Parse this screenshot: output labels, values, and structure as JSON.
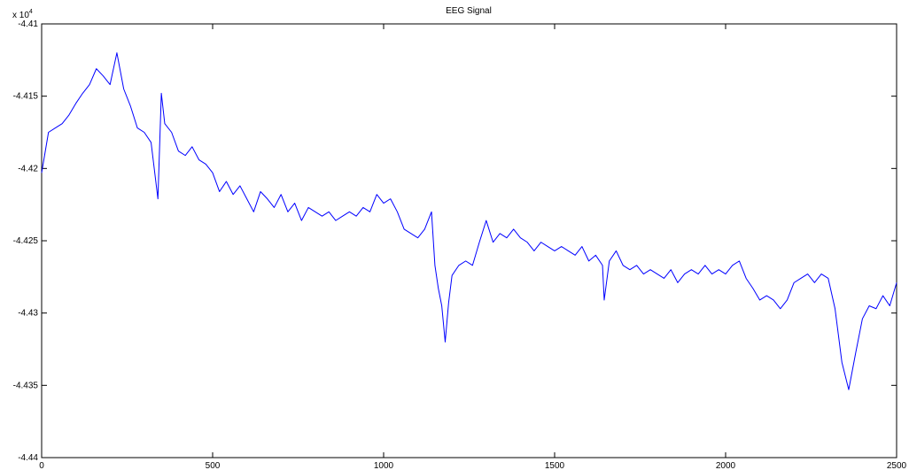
{
  "chart_data": {
    "type": "line",
    "title": "EEG Signal",
    "y_scale_label": {
      "base": "x 10",
      "exponent": "4"
    },
    "x": [
      0,
      20,
      40,
      60,
      80,
      100,
      120,
      140,
      160,
      180,
      200,
      220,
      240,
      260,
      280,
      300,
      320,
      340,
      350,
      360,
      380,
      400,
      420,
      440,
      460,
      480,
      500,
      520,
      540,
      560,
      580,
      600,
      620,
      640,
      660,
      680,
      700,
      720,
      740,
      760,
      780,
      800,
      820,
      840,
      860,
      880,
      900,
      920,
      940,
      960,
      980,
      1000,
      1020,
      1040,
      1060,
      1080,
      1100,
      1120,
      1140,
      1150,
      1160,
      1170,
      1180,
      1190,
      1200,
      1220,
      1240,
      1260,
      1280,
      1300,
      1320,
      1340,
      1360,
      1380,
      1400,
      1420,
      1440,
      1460,
      1480,
      1500,
      1520,
      1540,
      1560,
      1580,
      1600,
      1620,
      1640,
      1645,
      1660,
      1680,
      1700,
      1720,
      1740,
      1760,
      1780,
      1800,
      1820,
      1840,
      1860,
      1880,
      1900,
      1920,
      1940,
      1960,
      1980,
      2000,
      2020,
      2040,
      2060,
      2080,
      2100,
      2120,
      2140,
      2160,
      2180,
      2200,
      2220,
      2240,
      2260,
      2280,
      2300,
      2320,
      2340,
      2360,
      2380,
      2400,
      2420,
      2440,
      2460,
      2480,
      2500
    ],
    "series": [
      {
        "color": "#0000ff",
        "values": [
          -4.4203,
          -4.4175,
          -4.4172,
          -4.4169,
          -4.4163,
          -4.4155,
          -4.4148,
          -4.4142,
          -4.4131,
          -4.4136,
          -4.4142,
          -4.412,
          -4.4145,
          -4.4157,
          -4.4172,
          -4.4175,
          -4.4182,
          -4.4221,
          -4.4148,
          -4.4169,
          -4.4175,
          -4.4188,
          -4.4191,
          -4.4185,
          -4.4194,
          -4.4197,
          -4.4203,
          -4.4216,
          -4.4209,
          -4.4218,
          -4.4212,
          -4.4221,
          -4.423,
          -4.4216,
          -4.4221,
          -4.4227,
          -4.4218,
          -4.423,
          -4.4224,
          -4.4236,
          -4.4227,
          -4.423,
          -4.4233,
          -4.423,
          -4.4236,
          -4.4233,
          -4.423,
          -4.4233,
          -4.4227,
          -4.423,
          -4.4218,
          -4.4224,
          -4.4221,
          -4.423,
          -4.4242,
          -4.4245,
          -4.4248,
          -4.4242,
          -4.423,
          -4.4267,
          -4.4283,
          -4.4295,
          -4.432,
          -4.4293,
          -4.4274,
          -4.4267,
          -4.4264,
          -4.4267,
          -4.4251,
          -4.4236,
          -4.4251,
          -4.4245,
          -4.4248,
          -4.4242,
          -4.4248,
          -4.4251,
          -4.4257,
          -4.4251,
          -4.4254,
          -4.4257,
          -4.4254,
          -4.4257,
          -4.426,
          -4.4254,
          -4.4264,
          -4.426,
          -4.4267,
          -4.4291,
          -4.4264,
          -4.4257,
          -4.4267,
          -4.427,
          -4.4267,
          -4.4273,
          -4.427,
          -4.4273,
          -4.4276,
          -4.427,
          -4.4279,
          -4.4273,
          -4.427,
          -4.4273,
          -4.4267,
          -4.4273,
          -4.427,
          -4.4273,
          -4.4267,
          -4.4264,
          -4.4276,
          -4.4283,
          -4.4291,
          -4.4288,
          -4.4291,
          -4.4297,
          -4.4291,
          -4.4279,
          -4.4276,
          -4.4273,
          -4.4279,
          -4.4273,
          -4.4276,
          -4.4297,
          -4.4334,
          -4.4353,
          -4.4328,
          -4.4304,
          -4.4295,
          -4.4297,
          -4.4288,
          -4.4295,
          -4.4279
        ]
      }
    ],
    "xlim": [
      0,
      2500
    ],
    "xticks": [
      0,
      500,
      1000,
      1500,
      2000,
      2500
    ],
    "ylim": [
      -4.44,
      -4.41
    ],
    "yticks": [
      -4.44,
      -4.435,
      -4.43,
      -4.425,
      -4.42,
      -4.415,
      -4.41
    ]
  }
}
